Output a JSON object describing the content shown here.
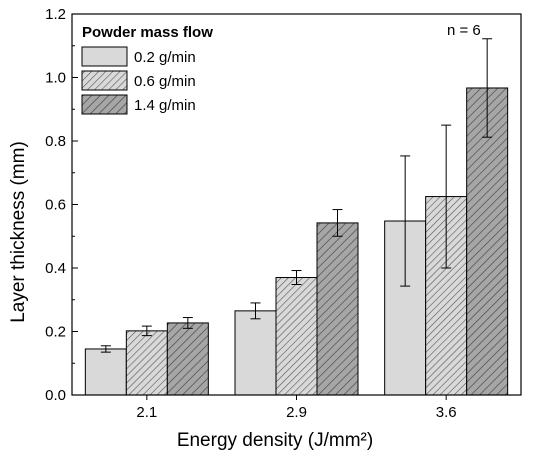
{
  "chart_data": {
    "type": "bar",
    "categories": [
      "2.1",
      "2.9",
      "3.6"
    ],
    "series": [
      {
        "name": "0.2 g/min",
        "values": [
          0.145,
          0.265,
          0.548
        ],
        "errors": [
          0.01,
          0.025,
          0.205
        ]
      },
      {
        "name": "0.6 g/min",
        "values": [
          0.202,
          0.37,
          0.625
        ],
        "errors": [
          0.015,
          0.022,
          0.225
        ]
      },
      {
        "name": "1.4 g/min",
        "values": [
          0.227,
          0.542,
          0.967
        ],
        "errors": [
          0.017,
          0.042,
          0.155
        ]
      }
    ],
    "series_styles": [
      {
        "fill": "#d9d9d9",
        "pattern": "none"
      },
      {
        "fill": "#d9d9d9",
        "pattern": "hatch-dense"
      },
      {
        "fill": "#a6a6a6",
        "pattern": "hatch"
      }
    ],
    "legend_title": "Powder mass flow",
    "legend_position": "top-left",
    "annotation": "n = 6",
    "xlabel": "Energy density (J/mm²)",
    "ylabel": "Layer thickness (mm)",
    "ylim": [
      0,
      1.2
    ],
    "yticks": [
      "0.0",
      "0.2",
      "0.4",
      "0.6",
      "0.8",
      "1.0",
      "1.2"
    ],
    "grid": false
  }
}
